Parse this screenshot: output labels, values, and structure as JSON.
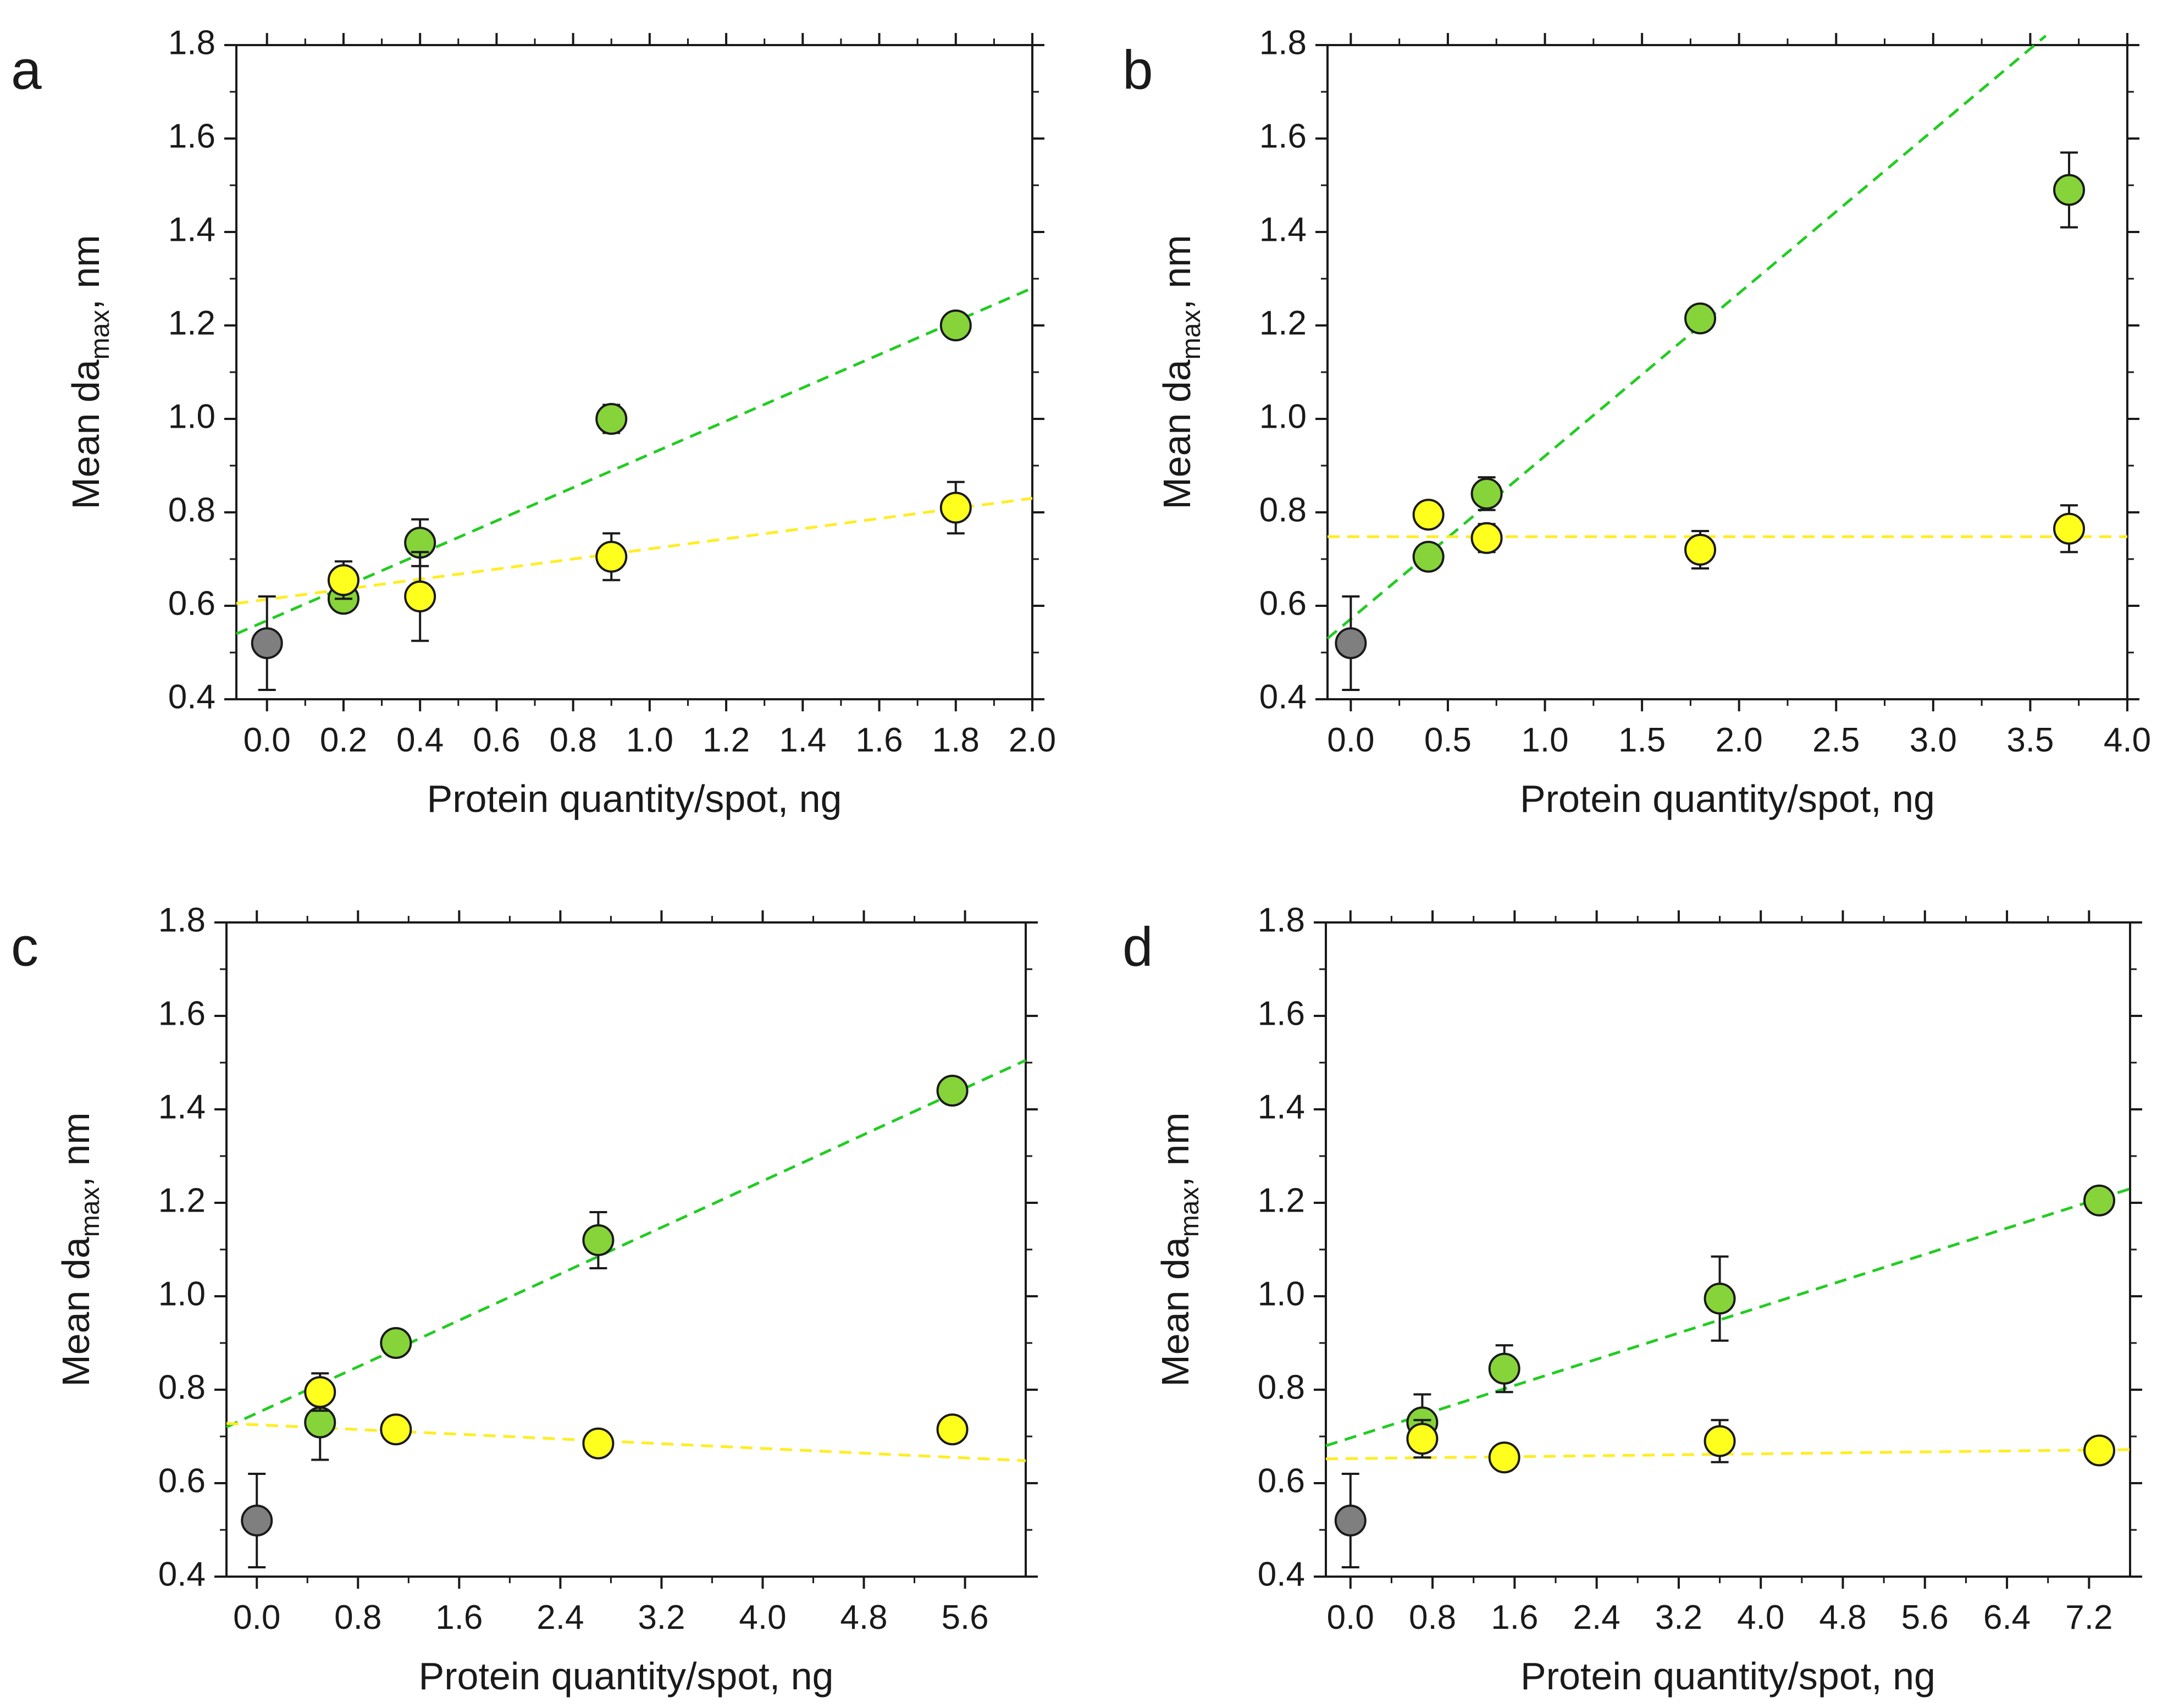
{
  "colors": {
    "green": "#86d43a",
    "yellow": "#ffff1e",
    "gray": "#7f7f7f",
    "green_line": "#22cc22",
    "yellow_line": "#ffee22",
    "axis": "#1a1a1a"
  },
  "chart_data": [
    {
      "panel": "a",
      "type": "scatter",
      "xlabel": "Protein quantity/spot, ng",
      "ylabel_main": "Mean da",
      "ylabel_sub": "max",
      "ylabel_tail": ", nm",
      "xlim": [
        -0.08,
        2.0
      ],
      "ylim": [
        0.4,
        1.8
      ],
      "xticks": [
        0.0,
        0.2,
        0.4,
        0.6,
        0.8,
        1.0,
        1.2,
        1.4,
        1.6,
        1.8,
        2.0
      ],
      "xtick_labels": [
        "0.0",
        "0.2",
        "0.4",
        "0.6",
        "0.8",
        "1.0",
        "1.2",
        "1.4",
        "1.6",
        "1.8",
        "2.0"
      ],
      "yticks": [
        0.4,
        0.6,
        0.8,
        1.0,
        1.2,
        1.4,
        1.6,
        1.8
      ],
      "ytick_labels": [
        "0.4",
        "0.6",
        "0.8",
        "1.0",
        "1.2",
        "1.4",
        "1.6",
        "1.8"
      ],
      "series": [
        {
          "color": "gray",
          "x": [
            0.0
          ],
          "y": [
            0.52
          ],
          "err": [
            0.1
          ]
        },
        {
          "color": "green",
          "x": [
            0.2,
            0.4,
            0.9,
            1.8
          ],
          "y": [
            0.615,
            0.735,
            1.0,
            1.2
          ],
          "err": [
            0.02,
            0.05,
            0.03,
            0.025
          ],
          "fit": {
            "x": [
              -0.08,
              2.0
            ],
            "y": [
              0.54,
              1.28
            ]
          }
        },
        {
          "color": "yellow",
          "x": [
            0.2,
            0.4,
            0.9,
            1.8
          ],
          "y": [
            0.655,
            0.62,
            0.705,
            0.81
          ],
          "err": [
            0.04,
            0.095,
            0.05,
            0.055
          ],
          "fit": {
            "x": [
              -0.08,
              2.0
            ],
            "y": [
              0.605,
              0.83
            ]
          }
        }
      ]
    },
    {
      "panel": "b",
      "type": "scatter",
      "xlabel": "Protein quantity/spot, ng",
      "ylabel_main": "Mean da",
      "ylabel_sub": "max",
      "ylabel_tail": ", nm",
      "xlim": [
        -0.12,
        4.0
      ],
      "ylim": [
        0.4,
        1.8
      ],
      "xticks": [
        0.0,
        0.5,
        1.0,
        1.5,
        2.0,
        2.5,
        3.0,
        3.5,
        4.0
      ],
      "xtick_labels": [
        "0.0",
        "0.5",
        "1.0",
        "1.5",
        "2.0",
        "2.5",
        "3.0",
        "3.5",
        "4.0"
      ],
      "yticks": [
        0.4,
        0.6,
        0.8,
        1.0,
        1.2,
        1.4,
        1.6,
        1.8
      ],
      "ytick_labels": [
        "0.4",
        "0.6",
        "0.8",
        "1.0",
        "1.2",
        "1.4",
        "1.6",
        "1.8"
      ],
      "series": [
        {
          "color": "gray",
          "x": [
            0.0
          ],
          "y": [
            0.52
          ],
          "err": [
            0.1
          ]
        },
        {
          "color": "green",
          "x": [
            0.4,
            0.7,
            1.8,
            3.7
          ],
          "y": [
            0.705,
            0.84,
            1.215,
            1.49
          ],
          "err": [
            0.02,
            0.035,
            0.025,
            0.08
          ],
          "fit": {
            "x": [
              -0.12,
              3.58
            ],
            "y": [
              0.53,
              1.82
            ]
          }
        },
        {
          "color": "yellow",
          "x": [
            0.4,
            0.7,
            1.8,
            3.7
          ],
          "y": [
            0.795,
            0.745,
            0.72,
            0.765
          ],
          "err": [
            0.02,
            0.03,
            0.04,
            0.05
          ],
          "fit": {
            "x": [
              -0.12,
              4.0
            ],
            "y": [
              0.748,
              0.748
            ]
          }
        }
      ]
    },
    {
      "panel": "c",
      "type": "scatter",
      "xlabel": "Protein quantity/spot, ng",
      "ylabel_main": "Mean da",
      "ylabel_sub": "max",
      "ylabel_tail": ", nm",
      "xlim": [
        -0.24,
        6.08
      ],
      "ylim": [
        0.4,
        1.8
      ],
      "xticks": [
        0.0,
        0.8,
        1.6,
        2.4,
        3.2,
        4.0,
        4.8,
        5.6
      ],
      "xtick_labels": [
        "0.0",
        "0.8",
        "1.6",
        "2.4",
        "3.2",
        "4.0",
        "4.8",
        "5.6"
      ],
      "yticks": [
        0.4,
        0.6,
        0.8,
        1.0,
        1.2,
        1.4,
        1.6,
        1.8
      ],
      "ytick_labels": [
        "0.4",
        "0.6",
        "0.8",
        "1.0",
        "1.2",
        "1.4",
        "1.6",
        "1.8"
      ],
      "series": [
        {
          "color": "gray",
          "x": [
            0.0
          ],
          "y": [
            0.52
          ],
          "err": [
            0.1
          ]
        },
        {
          "color": "green",
          "x": [
            0.5,
            1.1,
            2.7,
            5.5
          ],
          "y": [
            0.73,
            0.9,
            1.12,
            1.44
          ],
          "err": [
            0.08,
            0.02,
            0.06,
            0.02
          ],
          "fit": {
            "x": [
              -0.24,
              6.08
            ],
            "y": [
              0.72,
              1.505
            ]
          }
        },
        {
          "color": "yellow",
          "x": [
            0.5,
            1.1,
            2.7,
            5.5
          ],
          "y": [
            0.795,
            0.715,
            0.685,
            0.715
          ],
          "err": [
            0.04,
            0.025,
            0.025,
            0.025
          ],
          "fit": {
            "x": [
              -0.24,
              6.08
            ],
            "y": [
              0.728,
              0.648
            ]
          }
        }
      ]
    },
    {
      "panel": "d",
      "type": "scatter",
      "xlabel": "Protein quantity/spot, ng",
      "ylabel_main": "Mean da",
      "ylabel_sub": "max",
      "ylabel_tail": ", nm",
      "xlim": [
        -0.24,
        7.6
      ],
      "ylim": [
        0.4,
        1.8
      ],
      "xticks": [
        0.0,
        0.8,
        1.6,
        2.4,
        3.2,
        4.0,
        4.8,
        5.6,
        6.4,
        7.2
      ],
      "xtick_labels": [
        "0.0",
        "0.8",
        "1.6",
        "2.4",
        "3.2",
        "4.0",
        "4.8",
        "5.6",
        "6.4",
        "7.2"
      ],
      "yticks": [
        0.4,
        0.6,
        0.8,
        1.0,
        1.2,
        1.4,
        1.6,
        1.8
      ],
      "ytick_labels": [
        "0.4",
        "0.6",
        "0.8",
        "1.0",
        "1.2",
        "1.4",
        "1.6",
        "1.8"
      ],
      "series": [
        {
          "color": "gray",
          "x": [
            0.0
          ],
          "y": [
            0.52
          ],
          "err": [
            0.1
          ]
        },
        {
          "color": "green",
          "x": [
            0.7,
            1.5,
            3.6,
            7.3
          ],
          "y": [
            0.73,
            0.845,
            0.995,
            1.205
          ],
          "err": [
            0.06,
            0.05,
            0.09,
            0.02
          ],
          "fit": {
            "x": [
              -0.24,
              7.6
            ],
            "y": [
              0.68,
              1.23
            ]
          }
        },
        {
          "color": "yellow",
          "x": [
            0.7,
            1.5,
            3.6,
            7.3
          ],
          "y": [
            0.695,
            0.655,
            0.69,
            0.67
          ],
          "err": [
            0.04,
            0.02,
            0.045,
            0.02
          ],
          "fit": {
            "x": [
              -0.24,
              7.6
            ],
            "y": [
              0.652,
              0.672
            ]
          }
        }
      ]
    }
  ]
}
